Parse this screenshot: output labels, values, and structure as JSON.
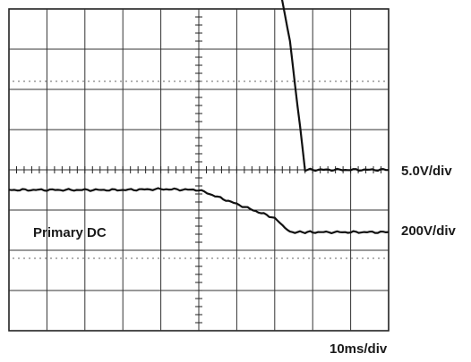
{
  "chart_data": {
    "type": "line",
    "title": "",
    "x_scale_label": "10ms/div",
    "x_divisions": 10,
    "y_divisions": 8,
    "grid": true,
    "x": [
      0,
      1,
      2,
      3,
      4,
      5,
      6,
      7,
      7.4,
      7.8,
      8,
      9,
      10
    ],
    "series": [
      {
        "name": "",
        "scale_label": "5.0V/div",
        "values": [
          5.2,
          5.2,
          5.2,
          5.2,
          5.2,
          5.2,
          5.2,
          5.2,
          3.2,
          0.0,
          0.0,
          0.0,
          0.0
        ]
      },
      {
        "name": "Primary DC",
        "scale_label": "200V/div",
        "values": [
          -0.5,
          -0.5,
          -0.5,
          -0.5,
          -0.48,
          -0.5,
          -0.85,
          -1.2,
          -1.55,
          -1.55,
          -1.55,
          -1.55,
          -1.55
        ]
      }
    ]
  }
}
